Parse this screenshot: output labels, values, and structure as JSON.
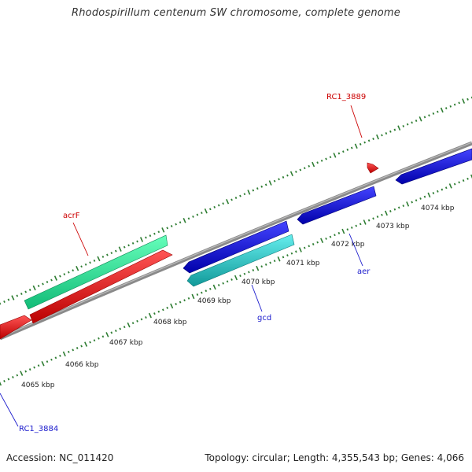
{
  "title": "Rhodospirillum centenum SW chromosome, complete genome",
  "footer": {
    "accession": "Accession: NC_011420",
    "summary": "Topology: circular; Length: 4,355,543 bp; Genes: 4,066"
  },
  "colors": {
    "backbone": "#8a8a8a",
    "tick": "#2e7d32",
    "label_red": "#cc0000",
    "label_blue": "#1a1acc"
  },
  "tick_labels": [
    "4065 kbp",
    "4066 kbp",
    "4067 kbp",
    "4068 kbp",
    "4069 kbp",
    "4070 kbp",
    "4071 kbp",
    "4072 kbp",
    "4073 kbp",
    "4074 kbp"
  ],
  "genes": [
    {
      "id": "gene-green-upper",
      "strand": "forward",
      "color": "#33ee99"
    },
    {
      "id": "gene-red-left",
      "strand": "forward",
      "color": "#ee1111"
    },
    {
      "id": "gene-red-main",
      "strand": "forward",
      "color": "#ee1111"
    },
    {
      "id": "gene-blue-1",
      "strand": "reverse",
      "color": "#1a1add"
    },
    {
      "id": "gene-cyan-gcd",
      "strand": "reverse",
      "color": "#22cccc"
    },
    {
      "id": "gene-blue-aer",
      "strand": "reverse",
      "color": "#1a1add"
    },
    {
      "id": "gene-red-small",
      "strand": "forward",
      "color": "#ee1111"
    },
    {
      "id": "gene-blue-right",
      "strand": "reverse",
      "color": "#1a1add"
    }
  ],
  "gene_labels": [
    {
      "text": "RC1_3889",
      "color": "#cc0000"
    },
    {
      "text": "acrF",
      "color": "#cc0000"
    },
    {
      "text": "aer",
      "color": "#1a1acc"
    },
    {
      "text": "gcd",
      "color": "#1a1acc"
    },
    {
      "text": "RC1_3884",
      "color": "#1a1acc"
    }
  ]
}
